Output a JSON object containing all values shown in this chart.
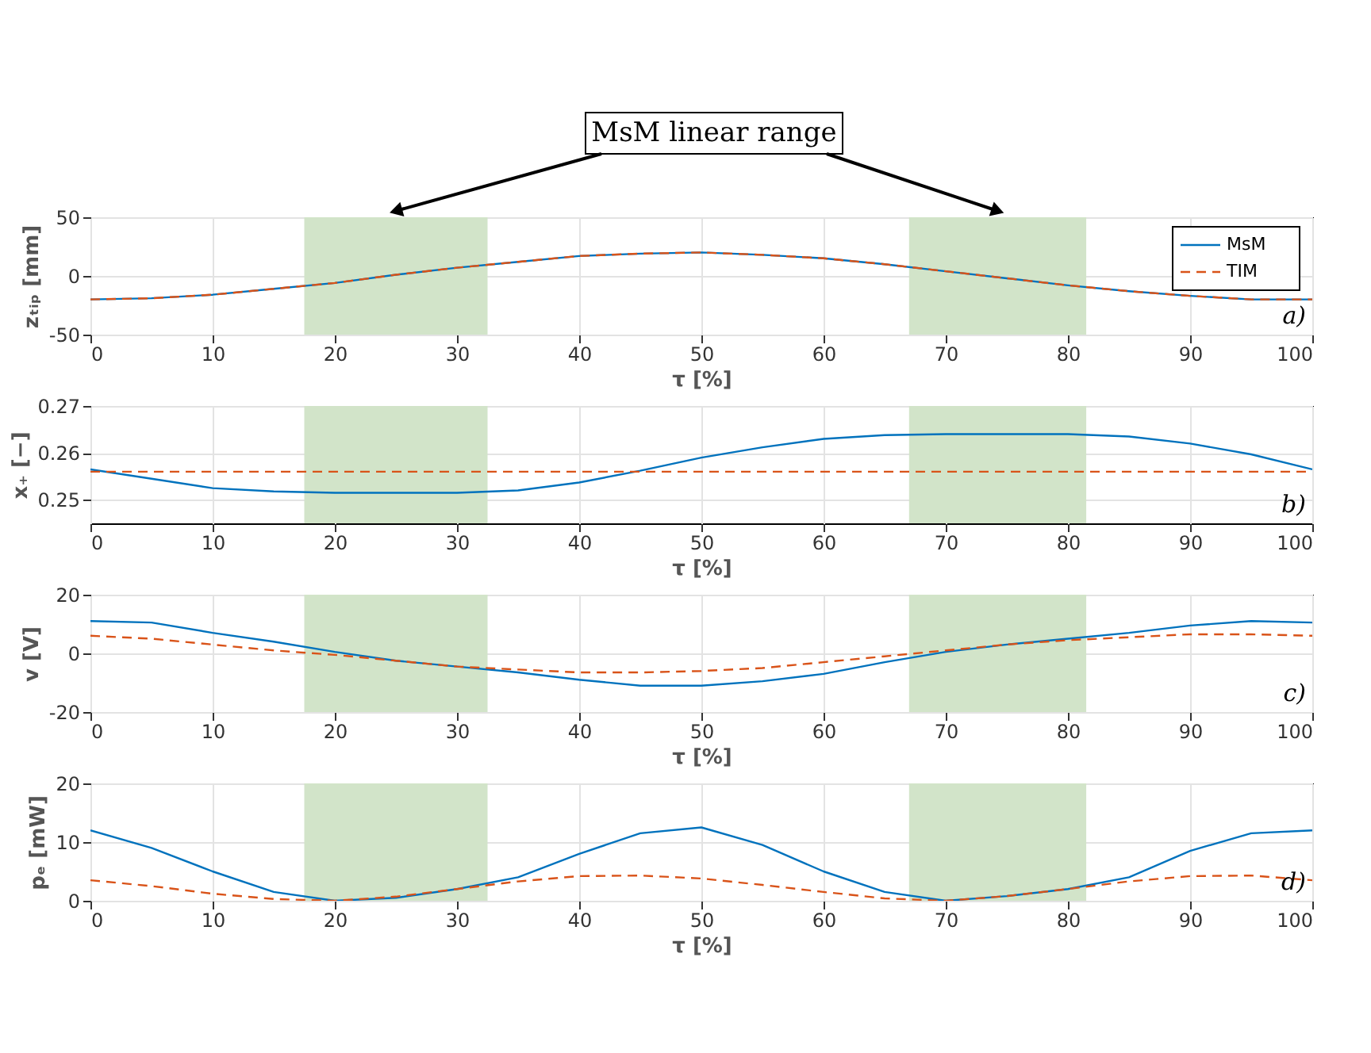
{
  "chart_data": [
    {
      "type": "line",
      "xlabel": "τ [%]",
      "ylabel": "zₜᵢₚ [mm]",
      "annotations": [
        "MsM linear range",
        "a)"
      ],
      "x": [
        0,
        5,
        10,
        15,
        20,
        25,
        30,
        35,
        40,
        45,
        50,
        55,
        60,
        65,
        70,
        75,
        80,
        85,
        90,
        95,
        100
      ],
      "xlim": [
        0,
        100
      ],
      "xticks": [
        0,
        10,
        20,
        30,
        40,
        50,
        60,
        70,
        80,
        90,
        100
      ],
      "ylim": [
        -50,
        50
      ],
      "yticks": [
        -50,
        0,
        50
      ],
      "grid": true,
      "legend": "top right",
      "bands": [
        {
          "axis": "x",
          "from": 17.5,
          "to": 32.5,
          "color": "#d2e4c9"
        },
        {
          "axis": "x",
          "from": 67,
          "to": 81.5,
          "color": "#d2e4c9"
        }
      ],
      "series": [
        {
          "name": "MsM",
          "color": "#0072bd",
          "line_style": "solid",
          "values": [
            -20,
            -19,
            -16,
            -11,
            -6,
            1,
            7,
            12,
            17,
            19,
            20,
            18,
            15,
            10,
            4,
            -2,
            -8,
            -13,
            -17,
            -20,
            -20
          ]
        },
        {
          "name": "TIM",
          "color": "#d95319",
          "line_style": "dashed",
          "values": [
            -20,
            -19,
            -16,
            -11,
            -6,
            1,
            7,
            12,
            17,
            19,
            20,
            18,
            15,
            10,
            4,
            -2,
            -8,
            -13,
            -17,
            -20,
            -20
          ]
        }
      ]
    },
    {
      "type": "line",
      "xlabel": "τ [%]",
      "ylabel": "x₊ [−]",
      "annotations": [
        "b)"
      ],
      "x": [
        0,
        5,
        10,
        15,
        20,
        25,
        30,
        35,
        40,
        45,
        50,
        55,
        60,
        65,
        70,
        75,
        80,
        85,
        90,
        95,
        100
      ],
      "xlim": [
        0,
        100
      ],
      "xticks": [
        0,
        10,
        20,
        30,
        40,
        50,
        60,
        70,
        80,
        90,
        100
      ],
      "ylim": [
        0.245,
        0.27
      ],
      "yticks": [
        0.25,
        0.26,
        0.27
      ],
      "grid": true,
      "bands": [
        {
          "axis": "x",
          "from": 17.5,
          "to": 32.5,
          "color": "#d2e4c9"
        },
        {
          "axis": "x",
          "from": 67,
          "to": 81.5,
          "color": "#d2e4c9"
        }
      ],
      "series": [
        {
          "color": "#0072bd",
          "line_style": "solid",
          "values": [
            0.2565,
            0.2545,
            0.2525,
            0.2518,
            0.2515,
            0.2515,
            0.2515,
            0.252,
            0.2537,
            0.2562,
            0.259,
            0.2612,
            0.263,
            0.2638,
            0.264,
            0.264,
            0.264,
            0.2635,
            0.262,
            0.2597,
            0.2565
          ]
        },
        {
          "color": "#d95319",
          "line_style": "dashed",
          "values": [
            0.256,
            0.256,
            0.256,
            0.256,
            0.256,
            0.256,
            0.256,
            0.256,
            0.256,
            0.256,
            0.256,
            0.256,
            0.256,
            0.256,
            0.256,
            0.256,
            0.256,
            0.256,
            0.256,
            0.256,
            0.256
          ]
        }
      ]
    },
    {
      "type": "line",
      "xlabel": "τ [%]",
      "ylabel": "v [V]",
      "annotations": [
        "c)"
      ],
      "x": [
        0,
        5,
        10,
        15,
        20,
        25,
        30,
        35,
        40,
        45,
        50,
        55,
        60,
        65,
        70,
        75,
        80,
        85,
        90,
        95,
        100
      ],
      "xlim": [
        0,
        100
      ],
      "xticks": [
        0,
        10,
        20,
        30,
        40,
        50,
        60,
        70,
        80,
        90,
        100
      ],
      "ylim": [
        -20,
        20
      ],
      "yticks": [
        -20,
        0,
        20
      ],
      "grid": true,
      "bands": [
        {
          "axis": "x",
          "from": 17.5,
          "to": 32.5,
          "color": "#d2e4c9"
        },
        {
          "axis": "x",
          "from": 67,
          "to": 81.5,
          "color": "#d2e4c9"
        }
      ],
      "series": [
        {
          "color": "#0072bd",
          "line_style": "solid",
          "values": [
            11,
            10.5,
            7,
            4,
            0.5,
            -2.5,
            -4.5,
            -6.5,
            -9,
            -11,
            -11,
            -9.5,
            -7,
            -3,
            0.5,
            3,
            5,
            7,
            9.5,
            11,
            10.5
          ]
        },
        {
          "color": "#d95319",
          "line_style": "dashed",
          "values": [
            6,
            5,
            3,
            1,
            -0.5,
            -2.5,
            -4.5,
            -5.5,
            -6.5,
            -6.5,
            -6,
            -5,
            -3,
            -1,
            1,
            3,
            4.5,
            5.5,
            6.5,
            6.5,
            6
          ]
        }
      ]
    },
    {
      "type": "line",
      "xlabel": "τ [%]",
      "ylabel": "pₑ [mW]",
      "annotations": [
        "d)"
      ],
      "x": [
        0,
        5,
        10,
        15,
        20,
        25,
        30,
        35,
        40,
        45,
        50,
        55,
        60,
        65,
        70,
        75,
        80,
        85,
        90,
        95,
        100
      ],
      "xlim": [
        0,
        100
      ],
      "xticks": [
        0,
        10,
        20,
        30,
        40,
        50,
        60,
        70,
        80,
        90,
        100
      ],
      "ylim": [
        0,
        20
      ],
      "yticks": [
        0,
        10,
        20
      ],
      "grid": true,
      "bands": [
        {
          "axis": "x",
          "from": 17.5,
          "to": 32.5,
          "color": "#d2e4c9"
        },
        {
          "axis": "x",
          "from": 67,
          "to": 81.5,
          "color": "#d2e4c9"
        }
      ],
      "series": [
        {
          "color": "#0072bd",
          "line_style": "solid",
          "values": [
            12,
            9,
            5,
            1.5,
            0,
            0.5,
            2,
            4,
            8,
            11.5,
            12.5,
            9.5,
            5,
            1.5,
            0,
            0.8,
            2,
            4,
            8.5,
            11.5,
            12
          ]
        },
        {
          "color": "#d95319",
          "line_style": "dashed",
          "values": [
            3.5,
            2.5,
            1.2,
            0.3,
            0,
            0.7,
            2,
            3.3,
            4.2,
            4.3,
            3.8,
            2.7,
            1.5,
            0.4,
            0,
            0.8,
            2,
            3.3,
            4.2,
            4.3,
            3.5
          ]
        }
      ]
    }
  ]
}
